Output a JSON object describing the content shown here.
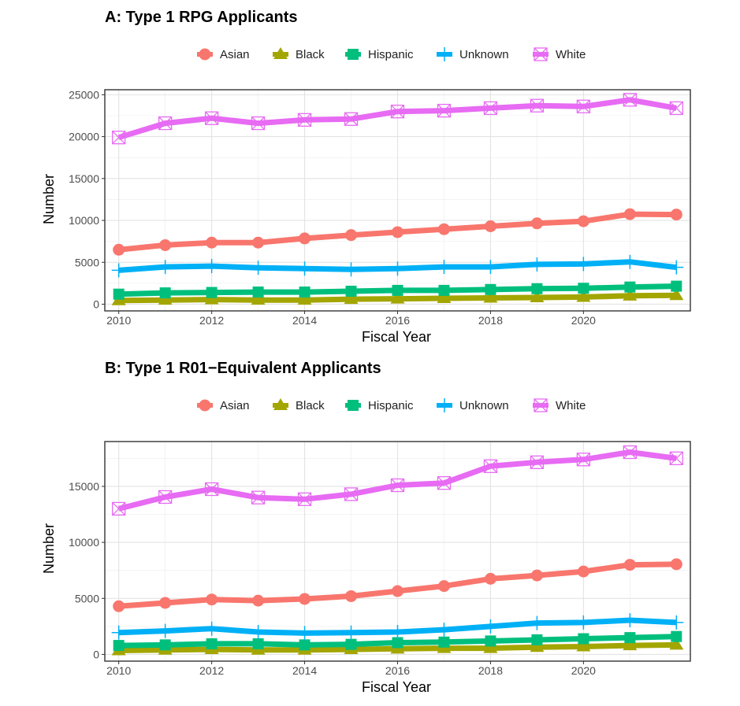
{
  "colors": {
    "Asian": "#F8766D",
    "Black": "#A3A500",
    "Hispanic": "#00BF7D",
    "Unknown": "#00B0F6",
    "White": "#E76BF3"
  },
  "chart_data": [
    {
      "type": "line",
      "title": "A: Type 1 RPG Applicants",
      "xlabel": "Fiscal Year",
      "ylabel": "Number",
      "x": [
        2010,
        2011,
        2012,
        2013,
        2014,
        2015,
        2016,
        2017,
        2018,
        2019,
        2020,
        2021,
        2022
      ],
      "xticks": [
        2010,
        2012,
        2014,
        2016,
        2018,
        2020
      ],
      "xtick_labels": [
        "2010",
        "2012",
        "2014",
        "2016",
        "2018",
        "2020"
      ],
      "yticks": [
        0,
        5000,
        10000,
        15000,
        20000,
        25000
      ],
      "ytick_labels": [
        "0",
        "5000",
        "10000",
        "15000",
        "20000",
        "25000"
      ],
      "xlim": [
        2009.7,
        2022.3
      ],
      "ylim": [
        -800,
        25600
      ],
      "legend_position": "top",
      "grid": true,
      "series": [
        {
          "name": "Asian",
          "marker": "circle",
          "values": [
            6500,
            7050,
            7350,
            7350,
            7850,
            8250,
            8600,
            8950,
            9300,
            9650,
            9900,
            10750,
            10700
          ]
        },
        {
          "name": "Black",
          "marker": "triangle",
          "values": [
            450,
            500,
            550,
            500,
            500,
            600,
            650,
            700,
            750,
            800,
            850,
            1000,
            1050
          ]
        },
        {
          "name": "Hispanic",
          "marker": "square",
          "values": [
            1200,
            1350,
            1400,
            1450,
            1450,
            1550,
            1650,
            1650,
            1750,
            1850,
            1900,
            2050,
            2150
          ]
        },
        {
          "name": "Unknown",
          "marker": "plus",
          "values": [
            4050,
            4450,
            4550,
            4350,
            4250,
            4150,
            4250,
            4450,
            4450,
            4750,
            4800,
            5050,
            4400
          ]
        },
        {
          "name": "White",
          "marker": "box-x",
          "values": [
            19900,
            21600,
            22200,
            21600,
            22000,
            22100,
            23000,
            23100,
            23400,
            23700,
            23600,
            24400,
            23400
          ]
        }
      ]
    },
    {
      "type": "line",
      "title": "B: Type 1 R01−Equivalent Applicants",
      "xlabel": "Fiscal Year",
      "ylabel": "Number",
      "x": [
        2010,
        2011,
        2012,
        2013,
        2014,
        2015,
        2016,
        2017,
        2018,
        2019,
        2020,
        2021,
        2022
      ],
      "xticks": [
        2010,
        2012,
        2014,
        2016,
        2018,
        2020
      ],
      "xtick_labels": [
        "2010",
        "2012",
        "2014",
        "2016",
        "2018",
        "2020"
      ],
      "yticks": [
        0,
        5000,
        10000,
        15000
      ],
      "ytick_labels": [
        "0",
        "5000",
        "10000",
        "15000"
      ],
      "xlim": [
        2009.7,
        2022.3
      ],
      "ylim": [
        -600,
        19000
      ],
      "legend_position": "top",
      "grid": true,
      "series": [
        {
          "name": "Asian",
          "marker": "circle",
          "values": [
            4300,
            4600,
            4900,
            4800,
            4950,
            5200,
            5650,
            6100,
            6750,
            7050,
            7400,
            8000,
            8050
          ]
        },
        {
          "name": "Black",
          "marker": "triangle",
          "values": [
            350,
            400,
            450,
            400,
            400,
            450,
            500,
            550,
            550,
            650,
            700,
            800,
            850
          ]
        },
        {
          "name": "Hispanic",
          "marker": "square",
          "values": [
            800,
            850,
            950,
            950,
            850,
            900,
            1050,
            1100,
            1200,
            1300,
            1400,
            1500,
            1600
          ]
        },
        {
          "name": "Unknown",
          "marker": "plus",
          "values": [
            1950,
            2100,
            2300,
            2000,
            1900,
            1950,
            2000,
            2200,
            2500,
            2800,
            2850,
            3050,
            2850
          ]
        },
        {
          "name": "White",
          "marker": "box-x",
          "values": [
            13000,
            14050,
            14750,
            14000,
            13850,
            14300,
            15100,
            15300,
            16800,
            17150,
            17400,
            18050,
            17500
          ]
        }
      ]
    }
  ]
}
